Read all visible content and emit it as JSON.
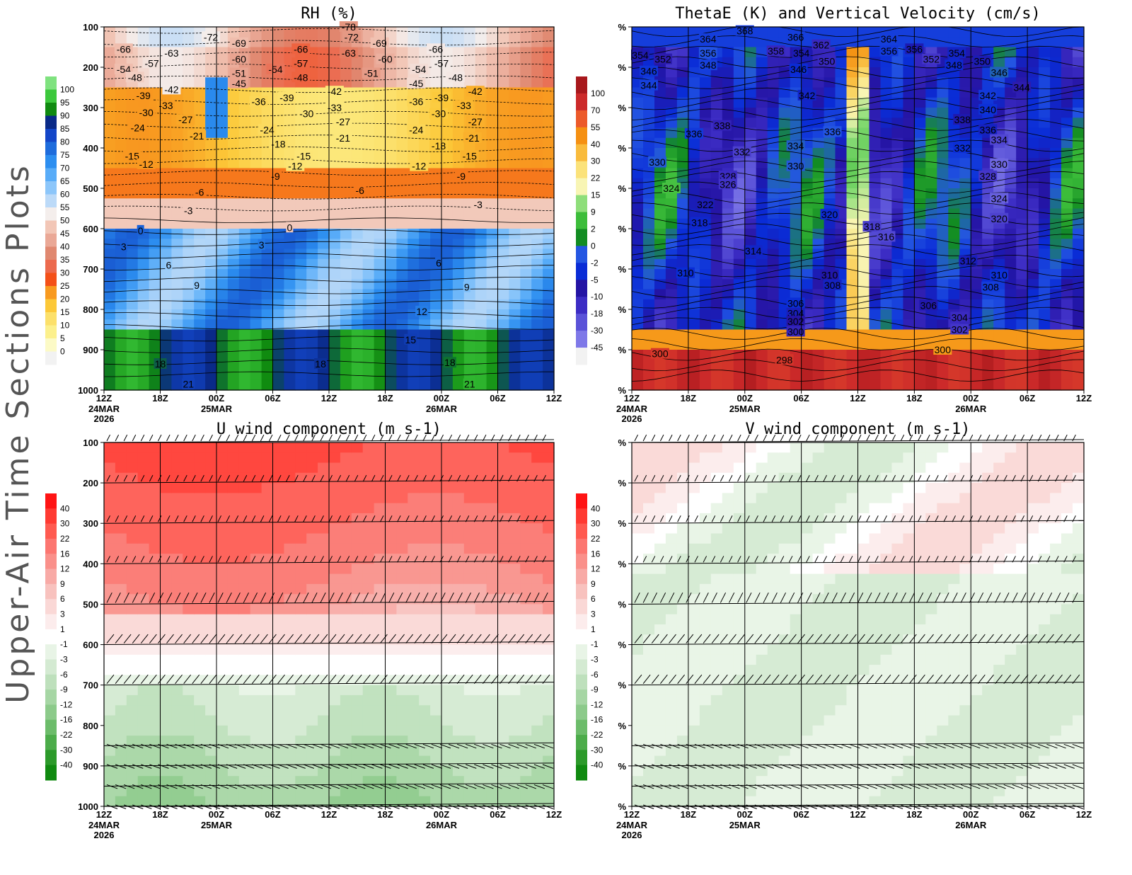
{
  "figure_label": "Upper-Air Time Sections Plots",
  "chart_data": [
    {
      "type": "heatmap",
      "title": "RH (%)",
      "xlabel": "",
      "ylabel": "",
      "x_ticks": [
        "12Z",
        "18Z",
        "00Z",
        "06Z",
        "12Z",
        "18Z",
        "00Z",
        "06Z",
        "12Z"
      ],
      "x_date_labels": [
        {
          "tick": 0,
          "lines": [
            "24MAR",
            "2026"
          ]
        },
        {
          "tick": 2,
          "lines": [
            "25MAR"
          ]
        },
        {
          "tick": 6,
          "lines": [
            "26MAR"
          ]
        }
      ],
      "y_ticks": [
        "100",
        "200",
        "300",
        "400",
        "500",
        "600",
        "700",
        "800",
        "900",
        "1000"
      ],
      "colorbar_levels": [
        "100",
        "95",
        "90",
        "85",
        "80",
        "75",
        "70",
        "65",
        "60",
        "55",
        "50",
        "45",
        "40",
        "35",
        "30",
        "25",
        "20",
        "15",
        "10",
        "5",
        "0"
      ],
      "colorbar_colors": [
        "#7fe27f",
        "#3cc83c",
        "#108a10",
        "#0a2a88",
        "#1346c8",
        "#1e6cdc",
        "#2c8ef0",
        "#58acf8",
        "#8cc6fa",
        "#bcdaf8",
        "#f4eeec",
        "#f2c6b6",
        "#eaa896",
        "#e08870",
        "#ec6a4e",
        "#f45018",
        "#f89a20",
        "#fcc838",
        "#fce06a",
        "#fcf08c",
        "#fcfac6",
        "#f2f2f2"
      ],
      "temperature_contour_labels": [
        {
          "v": "-78",
          "t": 4.35,
          "p": 100
        },
        {
          "v": "-72",
          "t": 1.9,
          "p": 125
        },
        {
          "v": "-69",
          "t": 2.4,
          "p": 140
        },
        {
          "v": "-72",
          "t": 4.4,
          "p": 125
        },
        {
          "v": "-69",
          "t": 4.9,
          "p": 140
        },
        {
          "v": "-66",
          "t": 0.35,
          "p": 155
        },
        {
          "v": "-63",
          "t": 1.2,
          "p": 165
        },
        {
          "v": "-60",
          "t": 2.4,
          "p": 180
        },
        {
          "v": "-66",
          "t": 3.5,
          "p": 155
        },
        {
          "v": "-63",
          "t": 4.35,
          "p": 165
        },
        {
          "v": "-60",
          "t": 5.0,
          "p": 180
        },
        {
          "v": "-66",
          "t": 5.9,
          "p": 155
        },
        {
          "v": "-57",
          "t": 0.85,
          "p": 190
        },
        {
          "v": "-57",
          "t": 3.5,
          "p": 190
        },
        {
          "v": "-57",
          "t": 6.0,
          "p": 190
        },
        {
          "v": "-54",
          "t": 0.35,
          "p": 205
        },
        {
          "v": "-54",
          "t": 3.05,
          "p": 205
        },
        {
          "v": "-54",
          "t": 5.6,
          "p": 205
        },
        {
          "v": "-51",
          "t": 2.4,
          "p": 215
        },
        {
          "v": "-51",
          "t": 4.75,
          "p": 215
        },
        {
          "v": "-48",
          "t": 0.55,
          "p": 225
        },
        {
          "v": "-48",
          "t": 3.5,
          "p": 225
        },
        {
          "v": "-48",
          "t": 6.25,
          "p": 225
        },
        {
          "v": "-45",
          "t": 2.4,
          "p": 240
        },
        {
          "v": "-45",
          "t": 5.55,
          "p": 240
        },
        {
          "v": "-42",
          "t": 1.2,
          "p": 255
        },
        {
          "v": "-42",
          "t": 4.1,
          "p": 260
        },
        {
          "v": "-42",
          "t": 6.6,
          "p": 260
        },
        {
          "v": "-39",
          "t": 0.7,
          "p": 270
        },
        {
          "v": "-39",
          "t": 3.25,
          "p": 275
        },
        {
          "v": "-39",
          "t": 6.0,
          "p": 275
        },
        {
          "v": "-36",
          "t": 2.75,
          "p": 285
        },
        {
          "v": "-36",
          "t": 5.55,
          "p": 285
        },
        {
          "v": "-33",
          "t": 1.1,
          "p": 295
        },
        {
          "v": "-33",
          "t": 4.1,
          "p": 300
        },
        {
          "v": "-33",
          "t": 6.4,
          "p": 295
        },
        {
          "v": "-30",
          "t": 0.75,
          "p": 312
        },
        {
          "v": "-30",
          "t": 3.6,
          "p": 315
        },
        {
          "v": "-30",
          "t": 5.95,
          "p": 315
        },
        {
          "v": "-27",
          "t": 1.45,
          "p": 330
        },
        {
          "v": "-27",
          "t": 4.25,
          "p": 335
        },
        {
          "v": "-27",
          "t": 6.6,
          "p": 335
        },
        {
          "v": "-24",
          "t": 0.6,
          "p": 350
        },
        {
          "v": "-24",
          "t": 2.9,
          "p": 355
        },
        {
          "v": "-24",
          "t": 5.55,
          "p": 355
        },
        {
          "v": "-21",
          "t": 1.65,
          "p": 370
        },
        {
          "v": "-21",
          "t": 4.25,
          "p": 375
        },
        {
          "v": "-21",
          "t": 6.55,
          "p": 375
        },
        {
          "v": "-18",
          "t": 3.1,
          "p": 390
        },
        {
          "v": "-18",
          "t": 5.95,
          "p": 395
        },
        {
          "v": "-15",
          "t": 0.5,
          "p": 420
        },
        {
          "v": "-15",
          "t": 3.55,
          "p": 420
        },
        {
          "v": "-15",
          "t": 6.5,
          "p": 420
        },
        {
          "v": "-12",
          "t": 0.75,
          "p": 440
        },
        {
          "v": "-12",
          "t": 3.4,
          "p": 445
        },
        {
          "v": "-12",
          "t": 5.6,
          "p": 445
        },
        {
          "v": "-9",
          "t": 3.05,
          "p": 470
        },
        {
          "v": "-9",
          "t": 6.35,
          "p": 470
        },
        {
          "v": "-6",
          "t": 1.7,
          "p": 510
        },
        {
          "v": "-6",
          "t": 4.55,
          "p": 505
        },
        {
          "v": "-3",
          "t": 1.5,
          "p": 555
        },
        {
          "v": "-3",
          "t": 6.65,
          "p": 540
        },
        {
          "v": "0",
          "t": 0.65,
          "p": 605
        },
        {
          "v": "0",
          "t": 3.3,
          "p": 597
        },
        {
          "v": "3",
          "t": 0.35,
          "p": 645
        },
        {
          "v": "3",
          "t": 2.8,
          "p": 640
        },
        {
          "v": "6",
          "t": 1.15,
          "p": 690
        },
        {
          "v": "6",
          "t": 5.95,
          "p": 685
        },
        {
          "v": "9",
          "t": 1.65,
          "p": 740
        },
        {
          "v": "9",
          "t": 6.45,
          "p": 745
        },
        {
          "v": "12",
          "t": 5.65,
          "p": 805
        },
        {
          "v": "15",
          "t": 5.45,
          "p": 875
        },
        {
          "v": "18",
          "t": 1.0,
          "p": 935
        },
        {
          "v": "18",
          "t": 3.85,
          "p": 935
        },
        {
          "v": "18",
          "t": 6.15,
          "p": 932
        },
        {
          "v": "21",
          "t": 1.5,
          "p": 985
        },
        {
          "v": "21",
          "t": 6.5,
          "p": 985
        }
      ]
    },
    {
      "type": "heatmap",
      "title": "ThetaE (K) and Vertical Velocity (cm/s)",
      "xlabel": "",
      "ylabel": "",
      "x_ticks": [
        "12Z",
        "18Z",
        "00Z",
        "06Z",
        "12Z",
        "18Z",
        "00Z",
        "06Z",
        "12Z"
      ],
      "x_date_labels": [
        {
          "tick": 0,
          "lines": [
            "24MAR",
            "2026"
          ]
        },
        {
          "tick": 2,
          "lines": [
            "25MAR"
          ]
        },
        {
          "tick": 6,
          "lines": [
            "26MAR"
          ]
        }
      ],
      "y_ticks": [
        "%",
        "%",
        "%",
        "%",
        "%",
        "%",
        "%",
        "%",
        "%",
        "%"
      ],
      "colorbar_levels": [
        "100",
        "70",
        "55",
        "40",
        "30",
        "22",
        "15",
        "9",
        "2",
        "0",
        "-2",
        "-5",
        "-10",
        "-18",
        "-30",
        "-45"
      ],
      "colorbar_colors": [
        "#a8181c",
        "#cc2a2a",
        "#ec5a2a",
        "#f59012",
        "#f9bb3c",
        "#fbe27a",
        "#f8f5b4",
        "#8ede7a",
        "#3cbd3a",
        "#128c22",
        "#2456e2",
        "#0a2cd6",
        "#2414a4",
        "#3c2cc4",
        "#5a52d8",
        "#7e78e8",
        "#f2f2f2"
      ],
      "thetae_contour_labels": [
        {
          "v": "368",
          "t": 2.0,
          "p": 110
        },
        {
          "v": "364",
          "t": 1.35,
          "p": 130
        },
        {
          "v": "366",
          "t": 2.9,
          "p": 125
        },
        {
          "v": "364",
          "t": 4.55,
          "p": 130
        },
        {
          "v": "362",
          "t": 3.35,
          "p": 145
        },
        {
          "v": "358",
          "t": 2.55,
          "p": 160
        },
        {
          "v": "356",
          "t": 1.35,
          "p": 165
        },
        {
          "v": "354",
          "t": 3.0,
          "p": 165
        },
        {
          "v": "356",
          "t": 4.55,
          "p": 160
        },
        {
          "v": "356",
          "t": 5.0,
          "p": 155
        },
        {
          "v": "354",
          "t": 5.75,
          "p": 165
        },
        {
          "v": "354",
          "t": 0.15,
          "p": 170
        },
        {
          "v": "352",
          "t": 0.55,
          "p": 180
        },
        {
          "v": "352",
          "t": 5.3,
          "p": 180
        },
        {
          "v": "350",
          "t": 3.45,
          "p": 185
        },
        {
          "v": "350",
          "t": 6.2,
          "p": 185
        },
        {
          "v": "348",
          "t": 1.35,
          "p": 195
        },
        {
          "v": "348",
          "t": 5.7,
          "p": 195
        },
        {
          "v": "346",
          "t": 0.3,
          "p": 210
        },
        {
          "v": "346",
          "t": 2.95,
          "p": 205
        },
        {
          "v": "346",
          "t": 6.5,
          "p": 213
        },
        {
          "v": "344",
          "t": 0.3,
          "p": 245
        },
        {
          "v": "344",
          "t": 6.9,
          "p": 250
        },
        {
          "v": "342",
          "t": 3.1,
          "p": 270
        },
        {
          "v": "342",
          "t": 6.3,
          "p": 270
        },
        {
          "v": "340",
          "t": 6.3,
          "p": 305
        },
        {
          "v": "338",
          "t": 1.6,
          "p": 345
        },
        {
          "v": "338",
          "t": 5.85,
          "p": 330
        },
        {
          "v": "336",
          "t": 1.1,
          "p": 365
        },
        {
          "v": "336",
          "t": 3.55,
          "p": 360
        },
        {
          "v": "336",
          "t": 6.3,
          "p": 355
        },
        {
          "v": "334",
          "t": 2.9,
          "p": 395
        },
        {
          "v": "334",
          "t": 6.5,
          "p": 380
        },
        {
          "v": "332",
          "t": 1.95,
          "p": 410
        },
        {
          "v": "332",
          "t": 5.85,
          "p": 400
        },
        {
          "v": "330",
          "t": 0.45,
          "p": 435
        },
        {
          "v": "330",
          "t": 2.9,
          "p": 445
        },
        {
          "v": "330",
          "t": 6.5,
          "p": 440
        },
        {
          "v": "328",
          "t": 1.7,
          "p": 470
        },
        {
          "v": "328",
          "t": 6.3,
          "p": 470
        },
        {
          "v": "326",
          "t": 1.7,
          "p": 490
        },
        {
          "v": "324",
          "t": 0.7,
          "p": 500
        },
        {
          "v": "324",
          "t": 6.5,
          "p": 525
        },
        {
          "v": "322",
          "t": 1.3,
          "p": 540
        },
        {
          "v": "320",
          "t": 3.5,
          "p": 565
        },
        {
          "v": "320",
          "t": 6.5,
          "p": 575
        },
        {
          "v": "318",
          "t": 1.2,
          "p": 585
        },
        {
          "v": "318",
          "t": 4.25,
          "p": 595
        },
        {
          "v": "316",
          "t": 4.5,
          "p": 620
        },
        {
          "v": "314",
          "t": 2.15,
          "p": 655
        },
        {
          "v": "312",
          "t": 5.95,
          "p": 680
        },
        {
          "v": "310",
          "t": 0.95,
          "p": 710
        },
        {
          "v": "310",
          "t": 3.5,
          "p": 715
        },
        {
          "v": "310",
          "t": 6.5,
          "p": 715
        },
        {
          "v": "308",
          "t": 3.55,
          "p": 740
        },
        {
          "v": "308",
          "t": 6.35,
          "p": 745
        },
        {
          "v": "306",
          "t": 2.9,
          "p": 785
        },
        {
          "v": "306",
          "t": 5.25,
          "p": 790
        },
        {
          "v": "304",
          "t": 2.9,
          "p": 810
        },
        {
          "v": "304",
          "t": 5.8,
          "p": 820
        },
        {
          "v": "302",
          "t": 2.9,
          "p": 830
        },
        {
          "v": "302",
          "t": 5.8,
          "p": 850
        },
        {
          "v": "300",
          "t": 2.9,
          "p": 855
        },
        {
          "v": "300",
          "t": 0.5,
          "p": 910
        },
        {
          "v": "300",
          "t": 5.5,
          "p": 900
        },
        {
          "v": "298",
          "t": 2.7,
          "p": 925
        }
      ]
    },
    {
      "type": "heatmap",
      "title": "U wind component (m s-1)",
      "xlabel": "",
      "ylabel": "",
      "x_ticks": [
        "12Z",
        "18Z",
        "00Z",
        "06Z",
        "12Z",
        "18Z",
        "00Z",
        "06Z",
        "12Z"
      ],
      "x_date_labels": [
        {
          "tick": 0,
          "lines": [
            "24MAR",
            "2026"
          ]
        },
        {
          "tick": 2,
          "lines": [
            "25MAR"
          ]
        },
        {
          "tick": 6,
          "lines": [
            "26MAR"
          ]
        }
      ],
      "y_ticks": [
        "100",
        "200",
        "300",
        "400",
        "500",
        "600",
        "700",
        "800",
        "900",
        "1000"
      ],
      "colorbar_levels": [
        "40",
        "30",
        "22",
        "16",
        "12",
        "9",
        "6",
        "3",
        "1",
        "-1",
        "-3",
        "-6",
        "-9",
        "-12",
        "-16",
        "-22",
        "-30",
        "-40"
      ],
      "colorbar_colors": [
        "#ff1414",
        "#ff3a32",
        "#ff5a50",
        "#fc7670",
        "#fa908a",
        "#f8aaa6",
        "#f8c2be",
        "#fad8d6",
        "#fcecec",
        "#ffffff",
        "#e8f4e6",
        "#d4ead2",
        "#bee0bc",
        "#a6d6a4",
        "#8cca8a",
        "#6cbc6a",
        "#4cac4a",
        "#2c9a2a",
        "#108a10"
      ],
      "barb_levels": [
        "100",
        "200",
        "300",
        "400",
        "500",
        "600",
        "700",
        "850",
        "900",
        "950",
        "1000"
      ]
    },
    {
      "type": "heatmap",
      "title": "V wind component (m s-1)",
      "xlabel": "",
      "ylabel": "",
      "x_ticks": [
        "12Z",
        "18Z",
        "00Z",
        "06Z",
        "12Z",
        "18Z",
        "00Z",
        "06Z",
        "12Z"
      ],
      "x_date_labels": [
        {
          "tick": 0,
          "lines": [
            "24MAR",
            "2026"
          ]
        },
        {
          "tick": 2,
          "lines": [
            "25MAR"
          ]
        },
        {
          "tick": 6,
          "lines": [
            "26MAR"
          ]
        }
      ],
      "y_ticks": [
        "%",
        "%",
        "%",
        "%",
        "%",
        "%",
        "%",
        "%",
        "%",
        "%"
      ],
      "colorbar_levels": [
        "40",
        "30",
        "22",
        "16",
        "12",
        "9",
        "6",
        "3",
        "1",
        "-1",
        "-3",
        "-6",
        "-9",
        "-12",
        "-16",
        "-22",
        "-30",
        "-40"
      ],
      "colorbar_colors": [
        "#ff1414",
        "#ff3a32",
        "#ff5a50",
        "#fc7670",
        "#fa908a",
        "#f8aaa6",
        "#f8c2be",
        "#fad8d6",
        "#fcecec",
        "#ffffff",
        "#e8f4e6",
        "#d4ead2",
        "#bee0bc",
        "#a6d6a4",
        "#8cca8a",
        "#6cbc6a",
        "#4cac4a",
        "#2c9a2a",
        "#108a10"
      ],
      "barb_levels": [
        "100",
        "200",
        "300",
        "400",
        "500",
        "600",
        "700",
        "850",
        "900",
        "950",
        "1000"
      ]
    }
  ]
}
